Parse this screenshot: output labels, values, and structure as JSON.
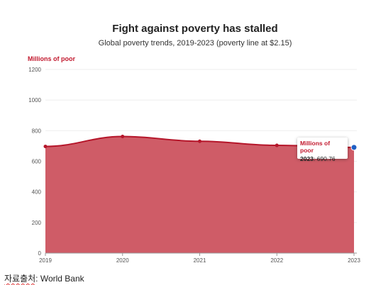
{
  "source_note": {
    "korean_label": "자료출처",
    "separator": ": ",
    "source": "World Bank"
  },
  "colors": {
    "series": "#b5162a",
    "area": "#cf5c67",
    "highlight_point": "#1f5fc4"
  },
  "tooltip": {
    "series_name": "Millions of poor",
    "year": "2023",
    "value_text": "690.76"
  },
  "chart_data": {
    "type": "area",
    "title": "Fight against poverty has stalled",
    "subtitle": "Global poverty trends, 2019-2023 (poverty line at $2.15)",
    "ylabel": "Millions of poor",
    "xlabel": "",
    "x": [
      "2019",
      "2020",
      "2021",
      "2022",
      "2023"
    ],
    "series": [
      {
        "name": "Millions of poor",
        "values": [
          697,
          762,
          731,
          704,
          690.76
        ]
      }
    ],
    "ylim": [
      0,
      1200
    ],
    "yticks": [
      0,
      200,
      400,
      600,
      800,
      1000,
      1200
    ],
    "grid": true,
    "highlighted_point": {
      "x": "2023",
      "value": 690.76
    },
    "legend": "none"
  }
}
